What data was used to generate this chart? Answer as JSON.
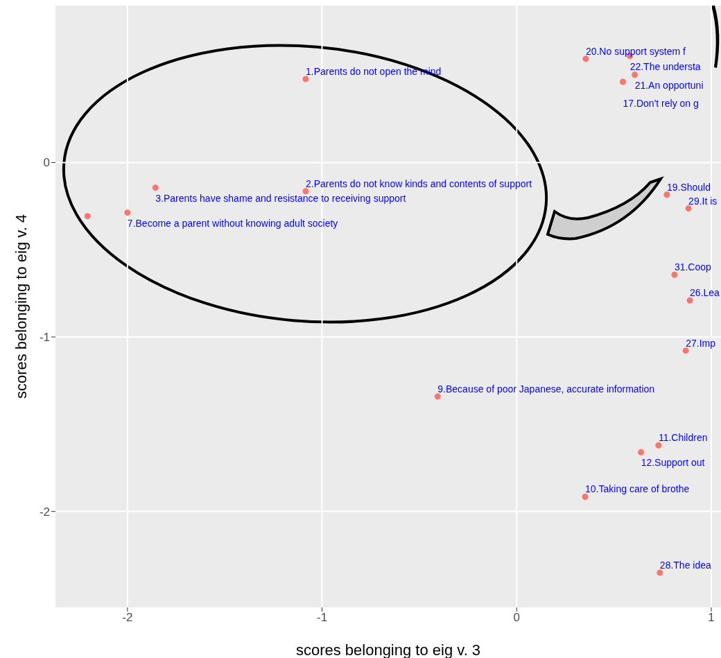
{
  "chart_data": {
    "type": "scatter",
    "xlabel": "scores belonging to eig v. 3",
    "ylabel": "scores belonging to eig v. 4",
    "x": [
      -1.084,
      -1.084,
      -1.856,
      -2.0,
      -2.205,
      0.355,
      0.582,
      0.607,
      0.546,
      0.772,
      0.883,
      0.811,
      0.89,
      0.869,
      -0.406,
      0.729,
      0.639,
      0.352,
      0.736
    ],
    "series": [
      {
        "color": "#f8766d",
        "values": [
          0.479,
          -0.164,
          -0.144,
          -0.287,
          -0.307,
          0.595,
          0.611,
          0.503,
          0.463,
          -0.184,
          -0.263,
          -0.643,
          -0.79,
          -1.078,
          -1.341,
          -1.621,
          -1.661,
          -1.916,
          -2.351
        ]
      }
    ],
    "xlim": [
      -2.37,
      1.05
    ],
    "ylim": [
      -2.55,
      0.9
    ],
    "xticks": [
      -2,
      -1,
      0,
      1
    ],
    "yticks": [
      -2,
      -1,
      0
    ],
    "grid": true,
    "marker": "circle",
    "legend": false,
    "annotations": [
      {
        "text": "1.Parents do not open the mind",
        "x": -1.084,
        "y": 0.479
      },
      {
        "text": "2.Parents do not know kinds and contents of support",
        "x": -1.084,
        "y": -0.164
      },
      {
        "text": "3.Parents have shame and resistance to receiving support",
        "x": -1.856,
        "y": -0.144
      },
      {
        "text": "7.Become a parent without knowing adult society",
        "x": -2.0,
        "y": -0.287
      },
      {
        "text": "20.No support system f",
        "x": 0.355,
        "y": 0.595
      },
      {
        "text": "22.The understa",
        "x": 0.582,
        "y": 0.611
      },
      {
        "text": "21.An opportuni",
        "x": 0.607,
        "y": 0.503
      },
      {
        "text": "17.Don't rely on g",
        "x": 0.546,
        "y": 0.463
      },
      {
        "text": "19.Should",
        "x": 0.772,
        "y": -0.184
      },
      {
        "text": "29.It is",
        "x": 0.883,
        "y": -0.263
      },
      {
        "text": "31.Coop",
        "x": 0.811,
        "y": -0.643
      },
      {
        "text": "26.Lea",
        "x": 0.89,
        "y": -0.79
      },
      {
        "text": "27.Imp",
        "x": 0.869,
        "y": -1.078
      },
      {
        "text": "9.Because of poor Japanese, accurate information",
        "x": -0.406,
        "y": -1.341
      },
      {
        "text": "11.Children",
        "x": 0.729,
        "y": -1.621
      },
      {
        "text": "12.Support out",
        "x": 0.639,
        "y": -1.661
      },
      {
        "text": "10.Taking care of brothe",
        "x": 0.352,
        "y": -1.916
      },
      {
        "text": "28.The idea",
        "x": 0.736,
        "y": -2.351
      }
    ]
  }
}
